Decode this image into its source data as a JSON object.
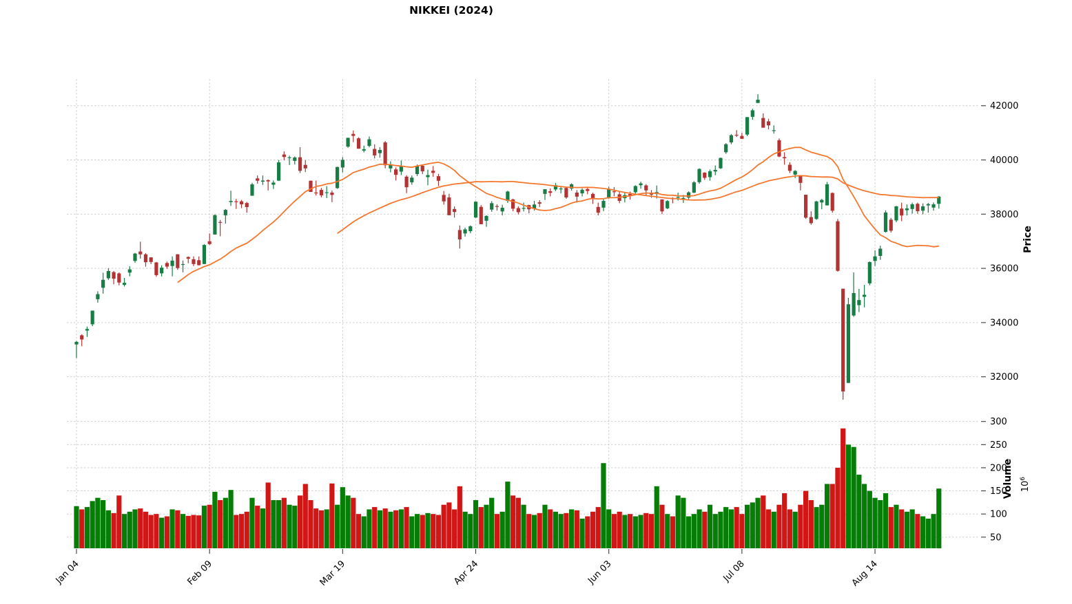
{
  "chart_data": {
    "type": "candlestick",
    "title": "NIKKEI (2024)",
    "ylabel": "Price",
    "ylabel_volume": "Volume",
    "volume_unit": "10",
    "volume_unit_exp": "6",
    "legend_position": "none",
    "grid": true,
    "price_yticks": [
      32000,
      34000,
      36000,
      38000,
      40000,
      42000
    ],
    "volume_yticks": [
      50,
      100,
      150,
      200,
      250,
      300
    ],
    "price_ylim": [
      30870,
      42990
    ],
    "volume_ylim_millions": [
      26,
      319
    ],
    "xtick_indices": [
      0,
      25,
      50,
      75,
      100,
      125,
      150
    ],
    "xtick_labels": [
      "Jan 04",
      "Feb 09",
      "Mar 19",
      "Apr 24",
      "Jun 03",
      "Jul 08",
      "Aug 14"
    ],
    "moving_averages": {
      "windows": [
        20,
        50
      ]
    },
    "colors": {
      "candle_up": "#187c45",
      "candle_down": "#b23333",
      "volume_up": "#067d06",
      "volume_down": "#d11616",
      "ma_line": "#f5772e",
      "grid": "#c9c9c9",
      "tick": "#3a3a3a",
      "text": "#000000",
      "background": "#ffffff"
    },
    "dates": [
      "Jan 04",
      "Jan 05",
      "Jan 09",
      "Jan 10",
      "Jan 11",
      "Jan 12",
      "Jan 15",
      "Jan 16",
      "Jan 17",
      "Jan 18",
      "Jan 19",
      "Jan 22",
      "Jan 23",
      "Jan 24",
      "Jan 25",
      "Jan 26",
      "Jan 29",
      "Jan 30",
      "Jan 31",
      "Feb 01",
      "Feb 02",
      "Feb 05",
      "Feb 06",
      "Feb 07",
      "Feb 08",
      "Feb 09",
      "Feb 13",
      "Feb 14",
      "Feb 15",
      "Feb 16",
      "Feb 19",
      "Feb 20",
      "Feb 21",
      "Feb 22",
      "Feb 26",
      "Feb 27",
      "Feb 28",
      "Feb 29",
      "Mar 01",
      "Mar 04",
      "Mar 05",
      "Mar 06",
      "Mar 07",
      "Mar 08",
      "Mar 11",
      "Mar 12",
      "Mar 13",
      "Mar 14",
      "Mar 15",
      "Mar 18",
      "Mar 19",
      "Mar 21",
      "Mar 22",
      "Mar 25",
      "Mar 26",
      "Mar 27",
      "Mar 28",
      "Mar 29",
      "Apr 01",
      "Apr 02",
      "Apr 03",
      "Apr 04",
      "Apr 05",
      "Apr 08",
      "Apr 09",
      "Apr 10",
      "Apr 11",
      "Apr 12",
      "Apr 15",
      "Apr 16",
      "Apr 17",
      "Apr 18",
      "Apr 19",
      "Apr 22",
      "Apr 23",
      "Apr 24",
      "Apr 25",
      "Apr 26",
      "Apr 30",
      "May 01",
      "May 02",
      "May 07",
      "May 08",
      "May 09",
      "May 10",
      "May 13",
      "May 14",
      "May 15",
      "May 16",
      "May 17",
      "May 20",
      "May 21",
      "May 22",
      "May 23",
      "May 24",
      "May 27",
      "May 28",
      "May 29",
      "May 30",
      "May 31",
      "Jun 03",
      "Jun 04",
      "Jun 05",
      "Jun 06",
      "Jun 07",
      "Jun 10",
      "Jun 11",
      "Jun 12",
      "Jun 13",
      "Jun 14",
      "Jun 17",
      "Jun 18",
      "Jun 19",
      "Jun 20",
      "Jun 21",
      "Jun 24",
      "Jun 25",
      "Jun 26",
      "Jun 27",
      "Jun 28",
      "Jul 01",
      "Jul 02",
      "Jul 03",
      "Jul 04",
      "Jul 05",
      "Jul 08",
      "Jul 09",
      "Jul 10",
      "Jul 11",
      "Jul 12",
      "Jul 16",
      "Jul 17",
      "Jul 18",
      "Jul 19",
      "Jul 22",
      "Jul 23",
      "Jul 24",
      "Jul 25",
      "Jul 26",
      "Jul 29",
      "Jul 30",
      "Jul 31",
      "Aug 01",
      "Aug 02",
      "Aug 05",
      "Aug 06",
      "Aug 07",
      "Aug 08",
      "Aug 09",
      "Aug 13",
      "Aug 14",
      "Aug 15",
      "Aug 16",
      "Aug 19",
      "Aug 20",
      "Aug 21",
      "Aug 22",
      "Aug 23",
      "Aug 26",
      "Aug 27",
      "Aug 28",
      "Aug 29",
      "Aug 30"
    ],
    "open": [
      33193,
      33530,
      33704,
      33937,
      34862,
      35284,
      35634,
      35862,
      35813,
      35390,
      35843,
      36274,
      36620,
      36517,
      36405,
      36218,
      35815,
      36196,
      36086,
      36520,
      36148,
      36419,
      36336,
      36300,
      36160,
      36998,
      37248,
      37711,
      37958,
      38445,
      38473,
      38473,
      38411,
      38679,
      39320,
      39199,
      39255,
      39086,
      39236,
      40201,
      40096,
      39966,
      40099,
      39817,
      39232,
      38798,
      38894,
      38804,
      38795,
      38960,
      39721,
      40490,
      40958,
      40798,
      40345,
      40517,
      40406,
      40250,
      40646,
      39688,
      39651,
      39570,
      39384,
      39174,
      39480,
      39785,
      39367,
      39602,
      39402,
      38711,
      38617,
      38190,
      37413,
      37288,
      37372,
      37875,
      38269,
      37756,
      38168,
      38298,
      38100,
      38487,
      38540,
      38221,
      38217,
      38335,
      38198,
      38437,
      38748,
      38846,
      38912,
      38917,
      38966,
      38942,
      38795,
      38768,
      38926,
      38745,
      38266,
      38241,
      38608,
      38841,
      38733,
      38590,
      38742,
      38808,
      39069,
      39060,
      38788,
      38742,
      38544,
      38215,
      38585,
      38621,
      38581,
      38612,
      38792,
      39180,
      39532,
      39366,
      39574,
      39690,
      40283,
      40648,
      40928,
      40885,
      40937,
      41590,
      42102,
      41547,
      41424,
      41080,
      40727,
      40102,
      39823,
      39459,
      39406,
      38716,
      37892,
      37823,
      38431,
      38323,
      38781,
      37737,
      35249,
      31773,
      34261,
      34642,
      34951,
      35446,
      36273,
      36459,
      37345,
      37796,
      37768,
      38206,
      38145,
      38190,
      38383,
      38128,
      38324,
      38242,
      38381
    ],
    "high": [
      33324,
      33568,
      33853,
      34441,
      35157,
      35839,
      36008,
      35902,
      35851,
      35647,
      36076,
      36571,
      36984,
      36565,
      36416,
      36236,
      36116,
      36249,
      36440,
      36520,
      36286,
      36440,
      36441,
      36441,
      36898,
      37287,
      37994,
      37786,
      38188,
      38865,
      38563,
      38524,
      38452,
      39156,
      39426,
      39426,
      39280,
      39244,
      39990,
      40314,
      40157,
      40130,
      40472,
      39989,
      39241,
      39241,
      38968,
      39032,
      38872,
      39750,
      40106,
      40823,
      41088,
      40837,
      40529,
      40865,
      40577,
      40474,
      40697,
      39951,
      39725,
      39978,
      39437,
      39425,
      39832,
      39837,
      39639,
      39774,
      39484,
      38854,
      38752,
      38286,
      37583,
      37500,
      37587,
      38471,
      38333,
      37957,
      38478,
      38363,
      38347,
      38863,
      38570,
      38285,
      38426,
      38346,
      38491,
      38515,
      38920,
      38953,
      39151,
      39007,
      39016,
      39137,
      38887,
      38953,
      39010,
      38797,
      38424,
      38549,
      39011,
      39000,
      38834,
      38783,
      38831,
      39066,
      39198,
      39109,
      38889,
      39058,
      38544,
      38516,
      38623,
      38797,
      38710,
      38842,
      39218,
      39690,
      39547,
      39650,
      39795,
      40089,
      40620,
      40954,
      41100,
      40999,
      41580,
      41889,
      42426,
      41717,
      41520,
      41275,
      40794,
      40284,
      39914,
      39625,
      39437,
      38716,
      38105,
      38494,
      38562,
      39188,
      38802,
      37821,
      35249,
      34911,
      35849,
      35241,
      35391,
      36252,
      36667,
      36836,
      38143,
      37863,
      38302,
      38424,
      38356,
      38424,
      38424,
      38398,
      38414,
      38430,
      38669
    ],
    "low": [
      32693,
      33128,
      33470,
      33868,
      34734,
      35069,
      35576,
      35413,
      35377,
      35330,
      35705,
      36208,
      36361,
      36061,
      36157,
      35687,
      35703,
      35983,
      35704,
      35946,
      35854,
      36190,
      36083,
      36106,
      36153,
      36862,
      37243,
      37184,
      37652,
      38304,
      38194,
      38220,
      38050,
      38678,
      39123,
      39077,
      38876,
      38930,
      39224,
      39990,
      39812,
      39834,
      39518,
      39551,
      38820,
      38684,
      38619,
      38593,
      38443,
      38935,
      39542,
      40452,
      40655,
      40414,
      40280,
      40466,
      40054,
      40084,
      39690,
      39542,
      39242,
      39444,
      38774,
      39083,
      39406,
      39481,
      39065,
      39380,
      39036,
      38352,
      37961,
      37873,
      36733,
      37172,
      37297,
      37864,
      37702,
      37533,
      38087,
      38131,
      37958,
      38414,
      38108,
      37990,
      38101,
      38029,
      38132,
      38263,
      38525,
      38656,
      38849,
      38767,
      38566,
      38869,
      38427,
      38655,
      38736,
      38379,
      37958,
      38111,
      38565,
      38663,
      38404,
      38433,
      38537,
      38702,
      38944,
      38683,
      38604,
      38577,
      38001,
      38185,
      38399,
      38504,
      38416,
      38536,
      38777,
      39120,
      39264,
      39236,
      39436,
      39668,
      40227,
      40580,
      40846,
      40780,
      40880,
      41483,
      42102,
      41190,
      41129,
      40970,
      40103,
      39824,
      39516,
      39330,
      38876,
      37825,
      37611,
      37790,
      38180,
      38320,
      38053,
      35880,
      31156,
      31770,
      34213,
      34386,
      34561,
      35376,
      36088,
      36314,
      37321,
      37322,
      37705,
      37740,
      37953,
      38019,
      38012,
      37992,
      38055,
      38131,
      38205
    ],
    "close": [
      33288,
      33377,
      33763,
      34441,
      35049,
      35577,
      35901,
      35619,
      35477,
      35466,
      35963,
      36546,
      36517,
      36226,
      36236,
      35751,
      36026,
      36065,
      36286,
      36011,
      36158,
      36354,
      36160,
      36119,
      36863,
      36897,
      37963,
      37703,
      38157,
      38487,
      38470,
      38363,
      38262,
      39098,
      39233,
      39239,
      39208,
      39166,
      39910,
      40109,
      40097,
      40090,
      39598,
      39688,
      38820,
      38797,
      38695,
      38807,
      38708,
      39740,
      40003,
      40815,
      40888,
      40414,
      40398,
      40762,
      40168,
      40369,
      39803,
      39838,
      39451,
      39773,
      38992,
      39347,
      39773,
      39581,
      39442,
      39523,
      39232,
      38471,
      37961,
      38079,
      37068,
      37438,
      37552,
      38460,
      37628,
      37934,
      38405,
      38274,
      38236,
      38835,
      38202,
      38073,
      38229,
      38179,
      38356,
      38385,
      38920,
      38787,
      39069,
      38946,
      38617,
      39103,
      38646,
      38900,
      38855,
      38556,
      38054,
      38487,
      38923,
      38837,
      38490,
      38703,
      38683,
      39038,
      39134,
      38876,
      38720,
      38814,
      38102,
      38482,
      38570,
      38633,
      38596,
      38804,
      39173,
      39667,
      39341,
      39583,
      39631,
      40074,
      40580,
      40913,
      40912,
      40780,
      41580,
      41831,
      42224,
      41190,
      41275,
      41097,
      40126,
      40063,
      39599,
      39594,
      39154,
      37869,
      37667,
      38468,
      38525,
      39101,
      38126,
      35909,
      31458,
      34675,
      35089,
      34831,
      35025,
      36232,
      36442,
      36726,
      38062,
      37388,
      38288,
      37951,
      38211,
      38364,
      38110,
      38288,
      38371,
      38362,
      38648
    ],
    "volume_millions": [
      117,
      110,
      115,
      128,
      135,
      130,
      108,
      102,
      140,
      100,
      105,
      110,
      112,
      105,
      98,
      100,
      92,
      95,
      110,
      108,
      100,
      96,
      98,
      97,
      118,
      120,
      148,
      130,
      135,
      152,
      98,
      100,
      105,
      135,
      118,
      112,
      168,
      130,
      130,
      135,
      120,
      118,
      140,
      165,
      130,
      112,
      108,
      110,
      166,
      120,
      158,
      140,
      135,
      100,
      95,
      110,
      115,
      108,
      112,
      105,
      108,
      110,
      115,
      95,
      100,
      98,
      102,
      100,
      98,
      120,
      125,
      110,
      160,
      105,
      100,
      130,
      115,
      120,
      135,
      100,
      105,
      170,
      140,
      135,
      120,
      100,
      98,
      102,
      120,
      110,
      105,
      100,
      102,
      110,
      108,
      90,
      95,
      105,
      115,
      210,
      110,
      100,
      105,
      98,
      100,
      95,
      98,
      102,
      100,
      160,
      120,
      100,
      95,
      140,
      135,
      95,
      100,
      110,
      105,
      120,
      100,
      105,
      115,
      110,
      115,
      100,
      120,
      125,
      135,
      140,
      110,
      105,
      120,
      145,
      110,
      105,
      120,
      150,
      130,
      115,
      120,
      165,
      165,
      200,
      285,
      250,
      245,
      185,
      165,
      150,
      135,
      130,
      145,
      115,
      120,
      110,
      105,
      110,
      100,
      95,
      90,
      100,
      155
    ]
  }
}
